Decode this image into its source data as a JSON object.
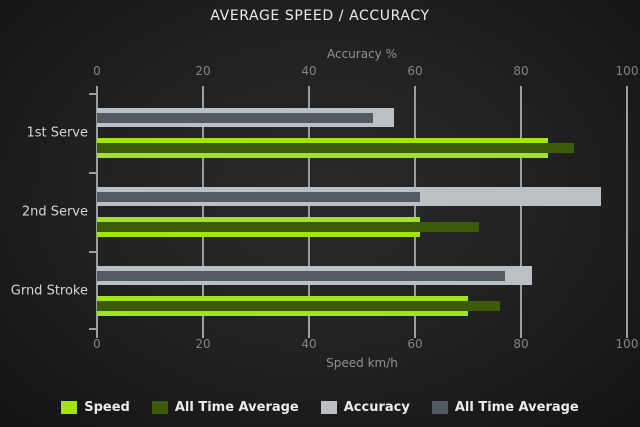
{
  "chart_data": {
    "type": "bar",
    "orientation": "horizontal",
    "title": "AVERAGE SPEED / ACCURACY",
    "categories": [
      "1st Serve",
      "2nd Serve",
      "Grnd Stroke"
    ],
    "top_axis": {
      "label": "Accuracy %",
      "ticks": [
        0,
        20,
        40,
        60,
        80,
        100
      ],
      "range": [
        0,
        100
      ]
    },
    "bottom_axis": {
      "label": "Speed km/h",
      "ticks": [
        0,
        20,
        40,
        60,
        80,
        100
      ],
      "range": [
        0,
        100
      ]
    },
    "series": [
      {
        "name": "Accuracy",
        "pair": "accuracy",
        "role": "outer",
        "axis": "top",
        "color": "#bac0c4",
        "values": [
          56,
          95,
          82
        ]
      },
      {
        "name": "All Time Average",
        "pair": "accuracy",
        "role": "inner",
        "axis": "top",
        "color": "#545a61",
        "values": [
          52,
          61,
          77
        ]
      },
      {
        "name": "Speed",
        "pair": "speed",
        "role": "outer",
        "axis": "bottom",
        "color": "#a2e31b",
        "values": [
          85,
          61,
          70
        ]
      },
      {
        "name": "All Time Average",
        "pair": "speed",
        "role": "inner",
        "axis": "bottom",
        "color": "#3d5a08",
        "values": [
          90,
          72,
          76
        ]
      }
    ],
    "legend": {
      "position": "bottom",
      "items": [
        {
          "label": "Speed",
          "color": "#a2e31b"
        },
        {
          "label": "All Time Average",
          "color": "#3d5a08"
        },
        {
          "label": "Accuracy",
          "color": "#bac0c4"
        },
        {
          "label": "All Time Average",
          "color": "#545a61"
        }
      ]
    },
    "grid": {
      "vertical": true,
      "color": "#999fa1"
    }
  }
}
